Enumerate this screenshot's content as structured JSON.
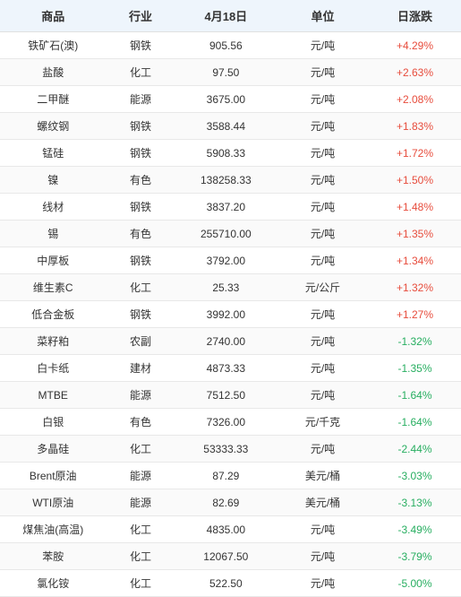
{
  "table": {
    "headers": {
      "product": "商品",
      "industry": "行业",
      "date": "4月18日",
      "unit": "单位",
      "change": "日涨跌"
    },
    "columns": [
      "product",
      "industry",
      "date",
      "unit",
      "change"
    ],
    "column_widths": [
      "23%",
      "15%",
      "22%",
      "20%",
      "20%"
    ],
    "header_bg": "#eef5fc",
    "header_color": "#333333",
    "header_fontsize": 13,
    "cell_fontsize": 12,
    "cell_color": "#333333",
    "row_alt_bg": "#fafafa",
    "border_color": "#e8e8e8",
    "positive_color": "#e74c3c",
    "negative_color": "#27ae60",
    "rows": [
      {
        "product": "铁矿石(澳)",
        "industry": "钢铁",
        "date": "905.56",
        "unit": "元/吨",
        "change": "+4.29%",
        "direction": "positive"
      },
      {
        "product": "盐酸",
        "industry": "化工",
        "date": "97.50",
        "unit": "元/吨",
        "change": "+2.63%",
        "direction": "positive"
      },
      {
        "product": "二甲醚",
        "industry": "能源",
        "date": "3675.00",
        "unit": "元/吨",
        "change": "+2.08%",
        "direction": "positive"
      },
      {
        "product": "螺纹钢",
        "industry": "钢铁",
        "date": "3588.44",
        "unit": "元/吨",
        "change": "+1.83%",
        "direction": "positive"
      },
      {
        "product": "锰硅",
        "industry": "钢铁",
        "date": "5908.33",
        "unit": "元/吨",
        "change": "+1.72%",
        "direction": "positive"
      },
      {
        "product": "镍",
        "industry": "有色",
        "date": "138258.33",
        "unit": "元/吨",
        "change": "+1.50%",
        "direction": "positive"
      },
      {
        "product": "线材",
        "industry": "钢铁",
        "date": "3837.20",
        "unit": "元/吨",
        "change": "+1.48%",
        "direction": "positive"
      },
      {
        "product": "锡",
        "industry": "有色",
        "date": "255710.00",
        "unit": "元/吨",
        "change": "+1.35%",
        "direction": "positive"
      },
      {
        "product": "中厚板",
        "industry": "钢铁",
        "date": "3792.00",
        "unit": "元/吨",
        "change": "+1.34%",
        "direction": "positive"
      },
      {
        "product": "维生素C",
        "industry": "化工",
        "date": "25.33",
        "unit": "元/公斤",
        "change": "+1.32%",
        "direction": "positive"
      },
      {
        "product": "低合金板",
        "industry": "钢铁",
        "date": "3992.00",
        "unit": "元/吨",
        "change": "+1.27%",
        "direction": "positive"
      },
      {
        "product": "菜籽粕",
        "industry": "农副",
        "date": "2740.00",
        "unit": "元/吨",
        "change": "-1.32%",
        "direction": "negative"
      },
      {
        "product": "白卡纸",
        "industry": "建材",
        "date": "4873.33",
        "unit": "元/吨",
        "change": "-1.35%",
        "direction": "negative"
      },
      {
        "product": "MTBE",
        "industry": "能源",
        "date": "7512.50",
        "unit": "元/吨",
        "change": "-1.64%",
        "direction": "negative"
      },
      {
        "product": "白银",
        "industry": "有色",
        "date": "7326.00",
        "unit": "元/千克",
        "change": "-1.64%",
        "direction": "negative"
      },
      {
        "product": "多晶硅",
        "industry": "化工",
        "date": "53333.33",
        "unit": "元/吨",
        "change": "-2.44%",
        "direction": "negative"
      },
      {
        "product": "Brent原油",
        "industry": "能源",
        "date": "87.29",
        "unit": "美元/桶",
        "change": "-3.03%",
        "direction": "negative"
      },
      {
        "product": "WTI原油",
        "industry": "能源",
        "date": "82.69",
        "unit": "美元/桶",
        "change": "-3.13%",
        "direction": "negative"
      },
      {
        "product": "煤焦油(高温)",
        "industry": "化工",
        "date": "4835.00",
        "unit": "元/吨",
        "change": "-3.49%",
        "direction": "negative"
      },
      {
        "product": "苯胺",
        "industry": "化工",
        "date": "12067.50",
        "unit": "元/吨",
        "change": "-3.79%",
        "direction": "negative"
      },
      {
        "product": "氯化铵",
        "industry": "化工",
        "date": "522.50",
        "unit": "元/吨",
        "change": "-5.00%",
        "direction": "negative"
      }
    ]
  }
}
